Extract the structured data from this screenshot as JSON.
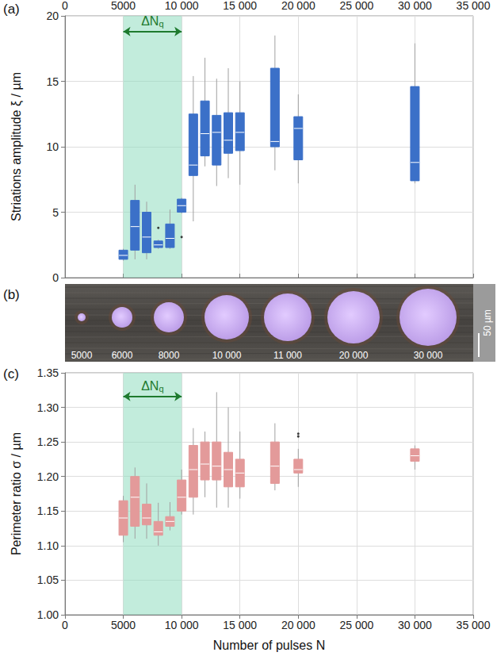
{
  "chart_data": [
    {
      "panel": "(a)",
      "type": "boxplot",
      "y_label": "Striations amplitude ξ / µm",
      "x": [
        5000,
        6000,
        7000,
        8000,
        9000,
        10000,
        11000,
        12000,
        13000,
        14000,
        15000,
        18000,
        20000,
        30000
      ],
      "series": [
        {
          "color": "#3b70c8",
          "min": [
            1.3,
            1.4,
            1.4,
            2.2,
            2.2,
            4.9,
            4.3,
            8.5,
            7.0,
            7.6,
            7.1,
            8.2,
            7.2,
            7.2
          ],
          "q1": [
            1.4,
            2.1,
            1.9,
            2.3,
            2.3,
            5.0,
            7.8,
            9.3,
            8.6,
            9.5,
            9.7,
            10.0,
            9.0,
            7.4
          ],
          "median": [
            1.7,
            3.9,
            3.1,
            2.5,
            3.0,
            5.5,
            8.6,
            11.0,
            11.1,
            10.5,
            11.1,
            10.4,
            11.4,
            8.8
          ],
          "q3": [
            2.1,
            5.9,
            5.0,
            2.8,
            4.1,
            6.0,
            12.5,
            13.5,
            12.4,
            12.6,
            12.6,
            16.0,
            12.3,
            14.6
          ],
          "max": [
            2.2,
            7.1,
            5.8,
            2.9,
            5.2,
            6.1,
            15.4,
            16.8,
            15.2,
            16.0,
            15.0,
            18.5,
            14.0,
            17.9
          ]
        }
      ],
      "outliers": [
        {
          "x": 8000,
          "y": 3.8
        },
        {
          "x": 10000,
          "y": 3.1
        }
      ],
      "annotation": {
        "text": "ΔN",
        "subscript": "q",
        "x_range": [
          5000,
          10000
        ],
        "y": 18.8,
        "color": "#1e7a2e",
        "band_color": "#8fdcc0"
      },
      "xlim": [
        0,
        35000
      ],
      "xticks": [
        0,
        5000,
        {
          "value": 10000,
          "label": "10 000"
        },
        {
          "value": 15000,
          "label": "15 000"
        },
        {
          "value": 20000,
          "label": "20 000"
        },
        {
          "value": 25000,
          "label": "25 000"
        },
        {
          "value": 30000,
          "label": "30 000"
        },
        {
          "value": 35000,
          "label": "35 000"
        }
      ],
      "ylim": [
        0,
        20
      ],
      "yticks": [
        0,
        5,
        10,
        15,
        20
      ],
      "grid": true
    },
    {
      "panel": "(c)",
      "type": "boxplot",
      "y_label": "Perimeter ratio σ / µm",
      "x_label": "Number of pulses N",
      "x": [
        5000,
        6000,
        7000,
        8000,
        9000,
        10000,
        11000,
        12000,
        13000,
        14000,
        15000,
        18000,
        20000,
        30000
      ],
      "series": [
        {
          "color": "#e39a9a",
          "min": [
            1.105,
            1.11,
            1.11,
            1.1,
            1.122,
            1.145,
            1.145,
            1.17,
            1.155,
            1.155,
            1.168,
            1.18,
            1.185,
            1.21
          ],
          "q1": [
            1.115,
            1.128,
            1.13,
            1.115,
            1.128,
            1.15,
            1.17,
            1.195,
            1.195,
            1.185,
            1.185,
            1.19,
            1.205,
            1.222
          ],
          "median": [
            1.14,
            1.17,
            1.14,
            1.12,
            1.135,
            1.17,
            1.21,
            1.218,
            1.215,
            1.21,
            1.205,
            1.215,
            1.21,
            1.23
          ],
          "q3": [
            1.165,
            1.2,
            1.16,
            1.135,
            1.142,
            1.195,
            1.245,
            1.25,
            1.25,
            1.235,
            1.225,
            1.25,
            1.225,
            1.24
          ],
          "max": [
            1.172,
            1.213,
            1.19,
            1.162,
            1.163,
            1.21,
            1.27,
            1.265,
            1.322,
            1.3,
            1.265,
            1.277,
            1.24,
            1.245
          ]
        }
      ],
      "outliers": [
        {
          "x": 20000,
          "y": 1.258
        },
        {
          "x": 20000,
          "y": 1.262
        }
      ],
      "annotation": {
        "text": "ΔN",
        "subscript": "q",
        "x_range": [
          5000,
          10000
        ],
        "y": 1.316,
        "color": "#1e7a2e",
        "band_color": "#8fdcc0"
      },
      "xlim": [
        0,
        35000
      ],
      "xticks": [
        0,
        5000,
        {
          "value": 10000,
          "label": "10 000"
        },
        {
          "value": 15000,
          "label": "15 000"
        },
        {
          "value": 20000,
          "label": "20 000"
        },
        {
          "value": 25000,
          "label": "25 000"
        },
        {
          "value": 30000,
          "label": "30 000"
        },
        {
          "value": 35000,
          "label": "35 000"
        }
      ],
      "ylim": [
        1.0,
        1.35
      ],
      "yticks": [
        {
          "value": 1.0,
          "label": "1.00"
        },
        {
          "value": 1.05,
          "label": "1.05"
        },
        {
          "value": 1.1,
          "label": "1.10"
        },
        {
          "value": 1.15,
          "label": "1.15"
        },
        {
          "value": 1.2,
          "label": "1.20"
        },
        {
          "value": 1.25,
          "label": "1.25"
        },
        {
          "value": 1.3,
          "label": "1.30"
        },
        {
          "value": 1.35,
          "label": "1.35"
        }
      ],
      "grid": true
    }
  ],
  "image_strip": {
    "panel": "(b)",
    "labels": [
      "5000",
      "6000",
      "8000",
      "10 000",
      "11 000",
      "20 000",
      "30 000"
    ],
    "scale_label": "50 µm"
  }
}
